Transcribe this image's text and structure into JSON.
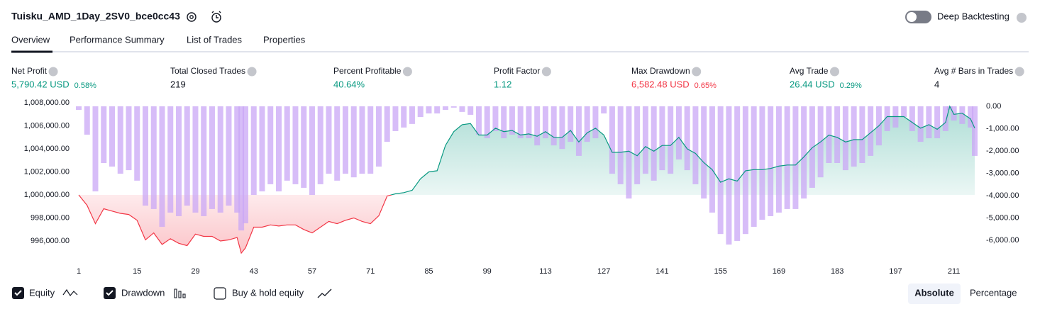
{
  "header": {
    "title": "Tuisku_AMD_1Day_2SV0_bce0cc43",
    "deep_backtesting": "Deep Backtesting"
  },
  "tabs": [
    "Overview",
    "Performance Summary",
    "List of Trades",
    "Properties"
  ],
  "metrics": [
    {
      "label": "Net Profit",
      "value": "5,790.42 USD",
      "percent": "0.58%",
      "color": "#089981"
    },
    {
      "label": "Total Closed Trades",
      "value": "219",
      "color": "#131722"
    },
    {
      "label": "Percent Profitable",
      "value": "40.64%",
      "color": "#089981"
    },
    {
      "label": "Profit Factor",
      "value": "1.12",
      "color": "#089981"
    },
    {
      "label": "Max Drawdown",
      "value": "6,582.48 USD",
      "percent": "0.65%",
      "color": "#f23645"
    },
    {
      "label": "Avg Trade",
      "value": "26.44 USD",
      "percent": "0.29%",
      "color": "#089981"
    },
    {
      "label": "Avg # Bars in Trades",
      "value": "4",
      "color": "#131722"
    }
  ],
  "chart_data": {
    "type": "combo",
    "x": [
      1,
      3,
      5,
      7,
      9,
      11,
      13,
      15,
      17,
      19,
      21,
      23,
      25,
      27,
      29,
      31,
      33,
      35,
      37,
      39,
      40,
      41,
      43,
      45,
      47,
      49,
      51,
      53,
      55,
      57,
      59,
      61,
      63,
      65,
      67,
      69,
      71,
      73,
      75,
      77,
      79,
      81,
      83,
      85,
      87,
      89,
      91,
      93,
      95,
      97,
      99,
      101,
      103,
      105,
      107,
      109,
      111,
      113,
      115,
      117,
      119,
      121,
      123,
      125,
      127,
      129,
      131,
      133,
      135,
      137,
      139,
      141,
      143,
      145,
      147,
      149,
      151,
      153,
      155,
      157,
      159,
      161,
      163,
      165,
      167,
      169,
      171,
      173,
      175,
      177,
      179,
      181,
      183,
      185,
      187,
      189,
      191,
      193,
      195,
      197,
      199,
      201,
      203,
      205,
      207,
      209,
      210,
      211,
      213,
      215,
      216
    ],
    "series": [
      {
        "name": "Equity",
        "type": "area",
        "axis": "y",
        "up_color": "#089981",
        "down_color": "#f23645",
        "values": [
          1000000,
          999100,
          997500,
          998800,
          998600,
          998400,
          998300,
          997800,
          996100,
          996700,
          995700,
          996200,
          995800,
          995600,
          996600,
          996400,
          996400,
          996000,
          996100,
          996300,
          994950,
          995400,
          997200,
          997200,
          997400,
          997300,
          997400,
          997400,
          997000,
          996700,
          997200,
          997700,
          997500,
          997800,
          998000,
          997700,
          997500,
          998200,
          999900,
          1000100,
          1000200,
          1000400,
          1001400,
          1002000,
          1002100,
          1004300,
          1005500,
          1006100,
          1006200,
          1005200,
          1005200,
          1005800,
          1005500,
          1005600,
          1005200,
          1005300,
          1005100,
          1005500,
          1005000,
          1005000,
          1005600,
          1004600,
          1005400,
          1005800,
          1005200,
          1003700,
          1003700,
          1003800,
          1003400,
          1004200,
          1003800,
          1004300,
          1004300,
          1005000,
          1004000,
          1003600,
          1002800,
          1002200,
          1001100,
          1001400,
          1001200,
          1002100,
          1002200,
          1002200,
          1002300,
          1002500,
          1002600,
          1002600,
          1003300,
          1004100,
          1004600,
          1005200,
          1005000,
          1004600,
          1004800,
          1004800,
          1005400,
          1006000,
          1006800,
          1006800,
          1006800,
          1006300,
          1005800,
          1006100,
          1005700,
          1006300,
          1007700,
          1007000,
          1007100,
          1006600,
          1005800
        ]
      },
      {
        "name": "Drawdown",
        "type": "bar",
        "axis": "y2",
        "color": "#c9a7f5",
        "values": [
          -160,
          -1270,
          -3810,
          -2540,
          -2700,
          -3020,
          -2860,
          -3330,
          -4450,
          -4600,
          -5400,
          -4760,
          -4920,
          -4450,
          -4760,
          -4920,
          -4600,
          -4760,
          -4450,
          -4760,
          -5560,
          -5240,
          -3970,
          -3810,
          -3490,
          -3810,
          -3330,
          -3490,
          -3650,
          -3970,
          -3490,
          -3020,
          -3330,
          -3020,
          -3180,
          -3020,
          -3020,
          -2700,
          -1590,
          -1110,
          -950,
          -790,
          -480,
          -320,
          -320,
          -160,
          -60,
          -250,
          -380,
          -1270,
          -1430,
          -1110,
          -1430,
          -1270,
          -1430,
          -1430,
          -1750,
          -1430,
          -1750,
          -1910,
          -1590,
          -2220,
          -1590,
          -1430,
          -320,
          -3020,
          -3490,
          -4130,
          -3490,
          -3020,
          -3330,
          -2860,
          -3020,
          -2380,
          -2860,
          -3490,
          -4130,
          -4760,
          -5720,
          -6190,
          -6030,
          -5720,
          -5400,
          -5080,
          -4920,
          -4760,
          -4600,
          -4600,
          -4130,
          -3650,
          -3180,
          -2540,
          -2540,
          -2860,
          -2700,
          -2540,
          -2220,
          -1750,
          -1110,
          -950,
          -480,
          -1110,
          -1590,
          -1430,
          -1430,
          -1110,
          -160,
          -640,
          -790,
          -950,
          -2220
        ]
      }
    ],
    "xlim": [
      1,
      216
    ],
    "xticks": [
      1,
      15,
      29,
      43,
      57,
      71,
      85,
      99,
      113,
      127,
      141,
      155,
      169,
      183,
      197,
      211
    ],
    "ylim": [
      994770,
      1008310
    ],
    "yticks": [
      {
        "value": 996000,
        "label": "996,000.00"
      },
      {
        "value": 998000,
        "label": "998,000.00"
      },
      {
        "value": 1000000,
        "label": "1,000,000.00"
      },
      {
        "value": 1002000,
        "label": "1,002,000.00"
      },
      {
        "value": 1004000,
        "label": "1,004,000.00"
      },
      {
        "value": 1006000,
        "label": "1,006,000.00"
      },
      {
        "value": 1008000,
        "label": "1,008,000.00"
      }
    ],
    "y2lim": [
      -6667,
      317
    ],
    "y2ticks": [
      {
        "value": 0,
        "label": "0.00"
      },
      {
        "value": -1000,
        "label": "-1,000.00"
      },
      {
        "value": -2000,
        "label": "-2,000.00"
      },
      {
        "value": -3000,
        "label": "-3,000.00"
      },
      {
        "value": -4000,
        "label": "-4,000.00"
      },
      {
        "value": -5000,
        "label": "-5,000.00"
      },
      {
        "value": -6000,
        "label": "-6,000.00"
      }
    ],
    "grid": false
  },
  "controls": {
    "buy_hold": "Buy & hold equity",
    "modes": [
      "Absolute",
      "Percentage"
    ]
  }
}
